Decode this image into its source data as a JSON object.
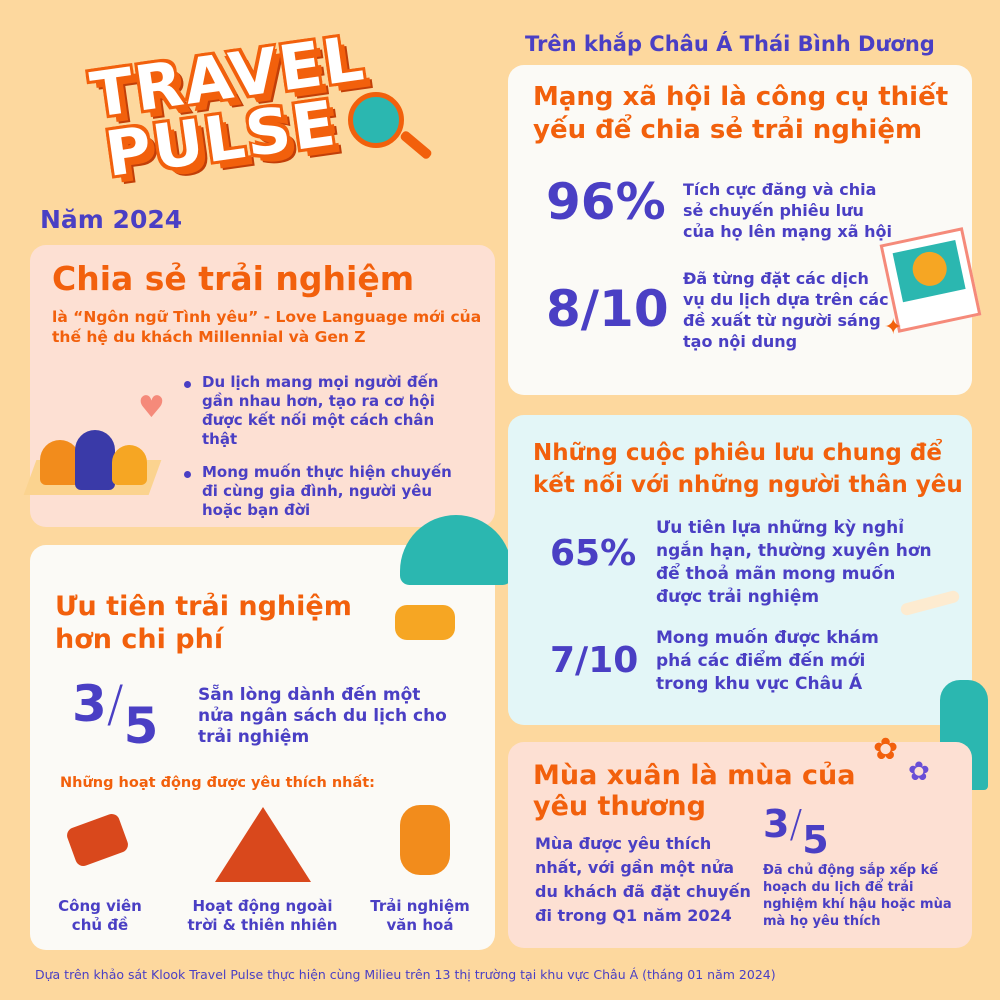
{
  "logo": {
    "line1": "TRAVEL",
    "line2": "PULSE"
  },
  "year": "Năm 2024",
  "region": "Trên khắp Châu Á Thái Bình Dương",
  "share": {
    "title": "Chia sẻ trải nghiệm",
    "subtitle": "là “Ngôn ngữ Tình yêu” - Love Language mới của thế hệ du khách Millennial và Gen Z",
    "bullets": [
      "Du lịch mang mọi người đến gần nhau hơn, tạo ra cơ hội được kết nối một cách chân thật",
      "Mong muốn thực hiện chuyến đi cùng gia đình, người yêu hoặc bạn đời"
    ]
  },
  "priority": {
    "title": "Ưu tiên trải nghiệm hơn chi phí",
    "stat_num": "3",
    "stat_den": "5",
    "stat_text": "Sẵn lòng dành đến một nửa ngân sách du lịch cho trải nghiệm",
    "activities_title": "Những hoạt động được yêu thích nhất:",
    "activities": [
      "Công viên chủ đề",
      "Hoạt động ngoài trời & thiên nhiên",
      "Trải nghiệm văn hoá"
    ]
  },
  "social": {
    "title": "Mạng xã hội là công cụ thiết yếu để chia sẻ trải nghiệm",
    "stats": [
      {
        "value": "96%",
        "text": "Tích cực đăng và chia sẻ chuyến phiêu lưu của họ lên mạng xã hội"
      },
      {
        "value": "8/10",
        "text": "Đã từng đặt các dịch vụ du lịch dựa trên các đề xuất từ người sáng tạo nội dung"
      }
    ]
  },
  "adventures": {
    "title": "Những cuộc phiêu lưu chung để kết nối với những người thân yêu",
    "stats": [
      {
        "value": "65%",
        "text": "Ưu tiên lựa những kỳ nghỉ ngắn hạn, thường xuyên hơn để thoả mãn mong muốn được trải nghiệm"
      },
      {
        "value": "7/10",
        "text": "Mong muốn được khám phá các điểm đến mới trong khu vực Châu Á"
      }
    ]
  },
  "spring": {
    "title": "Mùa xuân là mùa của yêu thương",
    "text": "Mùa được yêu thích nhất, với gần một nửa du khách đã đặt chuyến đi trong Q1 năm 2024",
    "stat_num": "3",
    "stat_den": "5",
    "stat_text": "Đã chủ động sắp xếp kế hoạch du lịch để trải nghiệm khí hậu hoặc mùa mà họ yêu thích"
  },
  "footer": "Dựa trên khảo sát Klook Travel Pulse thực hiện cùng Milieu trên 13 thị trường tại khu vực Châu Á (tháng 01 năm 2024)",
  "colors": {
    "background": "#fdd89e",
    "orange": "#f2600c",
    "purple": "#4a3fc4"
  }
}
